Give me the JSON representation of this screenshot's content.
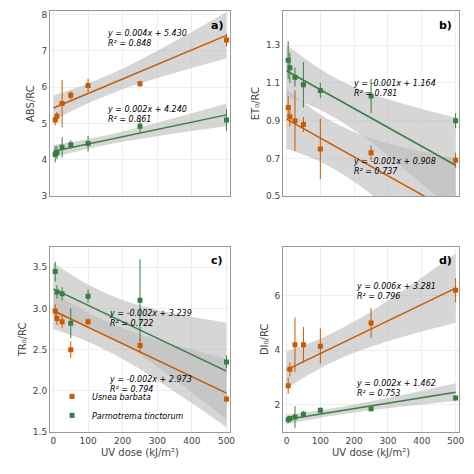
{
  "chart_data": [
    {
      "type": "scatter",
      "title": "a)",
      "ylabel": "ABS/RC",
      "tick_labels": "y",
      "xlim": [
        -10,
        510
      ],
      "xticks": [
        0,
        100,
        200,
        300,
        400,
        500
      ],
      "ylim": [
        3,
        8.1
      ],
      "yticks": [
        3,
        4,
        5,
        6,
        7,
        8
      ],
      "grid": true,
      "series": [
        {
          "name": "Parmotrema tinctorum",
          "color": "#3a7d44",
          "marker": "square",
          "x": [
            5,
            10,
            25,
            50,
            100,
            250,
            500
          ],
          "values": [
            4.15,
            4.2,
            4.35,
            4.42,
            4.45,
            4.93,
            5.1
          ],
          "yerr": [
            0.22,
            0.18,
            0.28,
            0.12,
            0.22,
            0.18,
            0.3
          ],
          "fit": {
            "line_style": "solid",
            "x": [
              0,
              100,
              200,
              300,
              400,
              500
            ],
            "values": [
              4.24,
              4.44,
              4.64,
              4.84,
              5.04,
              5.24
            ]
          },
          "band": {
            "color": "#bbbbbb",
            "x": [
              0,
              100,
              200,
              300,
              400,
              500
            ],
            "lower": [
              4.0713,
              4.3053,
              4.4983,
              4.655,
              4.7938,
              4.925
            ],
            "upper": [
              4.4087,
              4.5747,
              4.7817,
              5.025,
              5.2862,
              5.555
            ]
          }
        },
        {
          "name": "Usnea barbata",
          "color": "#c85a00",
          "marker": "square",
          "x": [
            5,
            10,
            25,
            50,
            100,
            250,
            500
          ],
          "values": [
            5.1,
            5.2,
            5.55,
            5.78,
            6.05,
            6.1,
            7.3
          ],
          "yerr": [
            0.15,
            0.12,
            0.65,
            0.12,
            0.18,
            0.08,
            0.18
          ],
          "fit": {
            "line_style": "solid",
            "x": [
              0,
              100,
              200,
              300,
              400,
              500
            ],
            "values": [
              5.43,
              5.83,
              6.23,
              6.63,
              7.03,
              7.43
            ]
          },
          "band": {
            "color": "#bbbbbb",
            "x": [
              0,
              100,
              200,
              300,
              400,
              500
            ],
            "lower": [
              5.0885,
              5.5573,
              5.9432,
              6.2555,
              6.5316,
              6.7923
            ],
            "upper": [
              5.7715,
              6.1027,
              6.5168,
              7.0045,
              7.5284,
              8.0677
            ]
          }
        }
      ],
      "annotations": [
        {
          "text": "y = 0.002x + 4.240\nR² = 0.861",
          "x": 150,
          "y": 5.25
        },
        {
          "text": "y = 0.004x + 5.430\nR² = 0.848",
          "x": 150,
          "y": 7.35
        }
      ]
    },
    {
      "type": "scatter",
      "title": "b)",
      "ylabel": "ET₀/RC",
      "tick_labels": "y",
      "xlim": [
        -10,
        510
      ],
      "xticks": [
        0,
        100,
        200,
        300,
        400,
        500
      ],
      "ylim": [
        0.5,
        1.48
      ],
      "yticks": [
        0.5,
        0.7,
        0.9,
        1.1,
        1.3
      ],
      "grid": true,
      "series": [
        {
          "name": "Parmotrema tinctorum",
          "color": "#3a7d44",
          "marker": "square",
          "x": [
            5,
            10,
            25,
            50,
            100,
            250,
            500
          ],
          "values": [
            1.22,
            1.18,
            1.13,
            1.09,
            1.06,
            1.03,
            0.9
          ],
          "yerr": [
            0.1,
            0.08,
            0.05,
            0.12,
            0.04,
            0.09,
            0.04
          ],
          "fit": {
            "line_style": "solid",
            "x": [
              0,
              100,
              200,
              300,
              400,
              500
            ],
            "values": [
              1.164,
              1.064,
              0.964,
              0.864,
              0.764,
              0.664
            ]
          },
          "band": {
            "color": "#bbbbbb",
            "x": [
              0,
              100,
              200,
              300,
              400,
              500
            ],
            "lower": [
              1.0284,
              0.9557,
              0.8501,
              0.7153,
              0.5661,
              0.4108
            ],
            "upper": [
              1.2996,
              1.1723,
              1.0779,
              1.0127,
              0.9619,
              0.9172
            ]
          }
        },
        {
          "name": "Usnea barbata",
          "color": "#c85a00",
          "marker": "square",
          "x": [
            5,
            10,
            25,
            50,
            100,
            250,
            500
          ],
          "values": [
            0.97,
            0.92,
            0.9,
            0.88,
            0.75,
            0.73,
            0.69
          ],
          "yerr": [
            0.06,
            0.05,
            0.16,
            0.04,
            0.16,
            0.04,
            0.04
          ],
          "fit": {
            "line_style": "solid",
            "x": [
              0,
              100,
              200,
              300,
              400,
              500
            ],
            "values": [
              0.908,
              0.808,
              0.708,
              0.608,
              0.508,
              0.408
            ]
          },
          "band": {
            "color": "#bbbbbb",
            "x": [
              0,
              100,
              200,
              300,
              400,
              500
            ],
            "lower": [
              0.7515,
              0.683,
              0.5766,
              0.4364,
              0.2796,
              0.1158
            ],
            "upper": [
              1.0645,
              0.933,
              0.8394,
              0.7796,
              0.7364,
              0.7002
            ]
          }
        }
      ],
      "annotations": [
        {
          "text": "y = -0.001x + 1.164\nR² = 0.781",
          "x": 190,
          "y": 1.07
        },
        {
          "text": "y = -0.001x + 0.908\nR² = 0.737",
          "x": 190,
          "y": 0.655
        }
      ]
    },
    {
      "type": "scatter",
      "title": "c)",
      "ylabel": "TR₀/RC",
      "xlabel": "UV dose (kJ/m²)",
      "xlim": [
        -10,
        510
      ],
      "xticks": [
        0,
        100,
        200,
        300,
        400,
        500
      ],
      "ylim": [
        1.5,
        3.75
      ],
      "yticks": [
        1.5,
        {
          "value": 2,
          "label": "2.0"
        },
        2.5,
        {
          "value": 3,
          "label": "3.0"
        },
        3.5
      ],
      "grid": true,
      "legend": "lower left",
      "series": [
        {
          "name": "Parmotrema tinctorum",
          "color": "#3a7d44",
          "marker": "square",
          "x": [
            5,
            10,
            25,
            50,
            100,
            250,
            500
          ],
          "values": [
            3.45,
            3.2,
            3.18,
            2.82,
            3.15,
            3.1,
            2.35
          ],
          "yerr": [
            0.12,
            0.08,
            0.08,
            0.18,
            0.08,
            0.5,
            0.08
          ],
          "fit": {
            "line_style": "solid",
            "x": [
              0,
              100,
              200,
              300,
              400,
              500
            ],
            "values": [
              3.239,
              3.039,
              2.839,
              2.639,
              2.439,
              2.239
            ]
          },
          "band": {
            "color": "#bbbbbb",
            "x": [
              0,
              100,
              200,
              300,
              400,
              500
            ],
            "lower": [
              2.9239,
              2.7874,
              2.5744,
              2.2935,
              1.9792,
              1.6507
            ],
            "upper": [
              3.5541,
              3.2906,
              3.1036,
              2.9845,
              2.8988,
              2.8273
            ]
          }
        },
        {
          "name": "Usnea barbata",
          "color": "#c85a00",
          "marker": "square",
          "x": [
            5,
            10,
            25,
            50,
            100,
            250,
            500
          ],
          "values": [
            2.97,
            2.88,
            2.84,
            2.5,
            2.84,
            2.55,
            1.9
          ],
          "yerr": [
            0.08,
            0.08,
            0.08,
            0.1,
            0.04,
            0.08,
            0.04
          ],
          "fit": {
            "line_style": "solid",
            "x": [
              0,
              100,
              200,
              300,
              400,
              500
            ],
            "values": [
              2.973,
              2.773,
              2.573,
              2.373,
              2.173,
              1.973
            ]
          },
          "band": {
            "color": "#bbbbbb",
            "x": [
              0,
              100,
              200,
              300,
              400,
              500
            ],
            "lower": [
              2.7502,
              2.5951,
              2.3859,
              2.1287,
              1.8479,
              1.557
            ],
            "upper": [
              3.1958,
              2.9509,
              2.7601,
              2.6173,
              2.4981,
              2.389
            ]
          }
        }
      ],
      "annotations": [
        {
          "text": "y = -0.002x + 3.239\nR² = 0.722",
          "x": 155,
          "y": 2.88
        },
        {
          "text": "y = -0.002x + 2.973\nR² = 0.794",
          "x": 155,
          "y": 2.08
        }
      ]
    },
    {
      "type": "scatter",
      "title": "d)",
      "ylabel": "DI₀/RC",
      "xlabel": "UV dose (kJ/m²)",
      "xlim": [
        -10,
        510
      ],
      "xticks": [
        0,
        100,
        200,
        300,
        400,
        500
      ],
      "ylim": [
        1.0,
        7.8
      ],
      "yticks": [
        2,
        4,
        6
      ],
      "grid": true,
      "series": [
        {
          "name": "Parmotrema tinctorum",
          "color": "#3a7d44",
          "marker": "square",
          "x": [
            5,
            10,
            25,
            50,
            100,
            250,
            500
          ],
          "values": [
            1.45,
            1.5,
            1.55,
            1.65,
            1.8,
            1.85,
            2.25
          ],
          "yerr": [
            0.12,
            0.1,
            0.4,
            0.12,
            0.1,
            0.1,
            0.1
          ],
          "fit": {
            "line_style": "solid",
            "x": [
              0,
              100,
              200,
              300,
              400,
              500
            ],
            "values": [
              1.462,
              1.662,
              1.862,
              2.062,
              2.262,
              2.462
            ]
          },
          "band": {
            "color": "#bbbbbb",
            "x": [
              0,
              100,
              200,
              300,
              400,
              500
            ],
            "lower": [
              1.2862,
              1.5216,
              1.7144,
              1.8692,
              2.0055,
              2.1338
            ],
            "upper": [
              1.6378,
              1.8024,
              2.0096,
              2.2548,
              2.5185,
              2.7902
            ]
          }
        },
        {
          "name": "Usnea barbata",
          "color": "#c85a00",
          "marker": "square",
          "x": [
            5,
            10,
            25,
            50,
            100,
            250,
            500
          ],
          "values": [
            2.7,
            3.3,
            4.2,
            4.2,
            4.15,
            5.0,
            6.2
          ],
          "yerr": [
            0.3,
            0.25,
            1.0,
            0.65,
            0.65,
            0.55,
            0.45
          ],
          "fit": {
            "line_style": "solid",
            "x": [
              0,
              100,
              200,
              300,
              400,
              500
            ],
            "values": [
              3.281,
              3.881,
              4.481,
              5.081,
              5.681,
              6.281
            ]
          },
          "band": {
            "color": "#bbbbbb",
            "x": [
              0,
              100,
              200,
              300,
              400,
              500
            ],
            "lower": [
              2.6001,
              3.3372,
              3.9092,
              4.3343,
              4.6873,
              5.0096
            ],
            "upper": [
              3.9619,
              4.4248,
              5.0528,
              5.8277,
              6.6747,
              7.5524
            ]
          }
        }
      ],
      "annotations": [
        {
          "text": "y = 0.002x + 1.462\nR² = 0.753",
          "x": 200,
          "y": 2.6
        },
        {
          "text": "y = 0.006x + 3.281\nR² = 0.796",
          "x": 200,
          "y": 6.15
        }
      ]
    }
  ]
}
